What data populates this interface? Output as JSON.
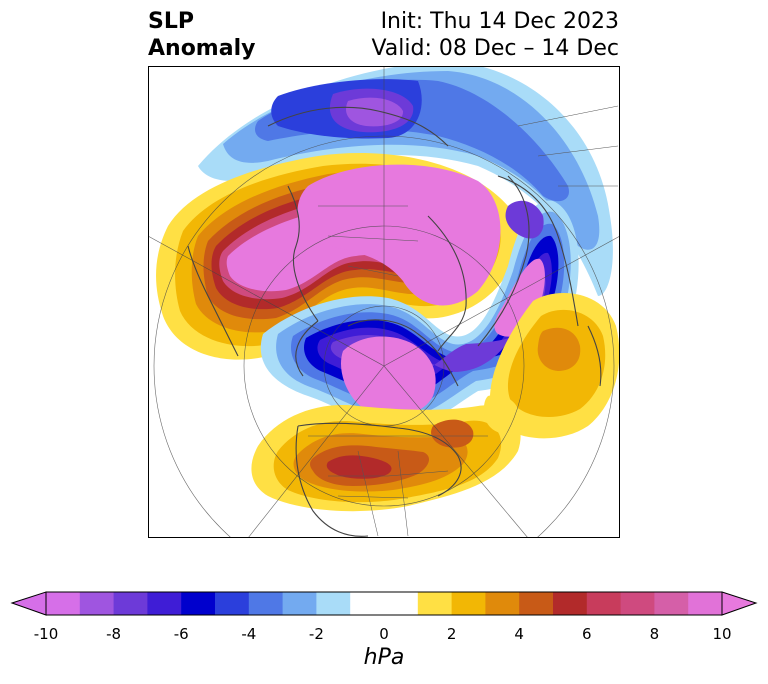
{
  "title": {
    "variable": "SLP",
    "subvariable": "Anomaly",
    "init": "Init: Thu 14 Dec 2023",
    "valid": "Valid: 08 Dec – 14 Dec"
  },
  "colorbar": {
    "unit": "hPa",
    "ticks": [
      "-10",
      "-8",
      "-6",
      "-4",
      "-2",
      "0",
      "2",
      "4",
      "6",
      "8",
      "10"
    ],
    "levels": [
      {
        "color": "#d66fe8"
      },
      {
        "color": "#9f55e0"
      },
      {
        "color": "#6d3ad8"
      },
      {
        "color": "#3f1dd6"
      },
      {
        "color": "#0000cd"
      },
      {
        "color": "#2b3fdc"
      },
      {
        "color": "#4f78e6"
      },
      {
        "color": "#73aaf0"
      },
      {
        "color": "#a9dcf8"
      },
      {
        "color": "#ffffff"
      },
      {
        "color": "#ffffff"
      },
      {
        "color": "#ffe044"
      },
      {
        "color": "#f2b705"
      },
      {
        "color": "#e08a0b"
      },
      {
        "color": "#c85a17"
      },
      {
        "color": "#b22a2a"
      },
      {
        "color": "#c83c5c"
      },
      {
        "color": "#cf4a7f"
      },
      {
        "color": "#d55fa8"
      },
      {
        "color": "#e172d8"
      }
    ],
    "extend_low_color": "#d66fe8",
    "extend_high_color": "#e779de"
  }
}
